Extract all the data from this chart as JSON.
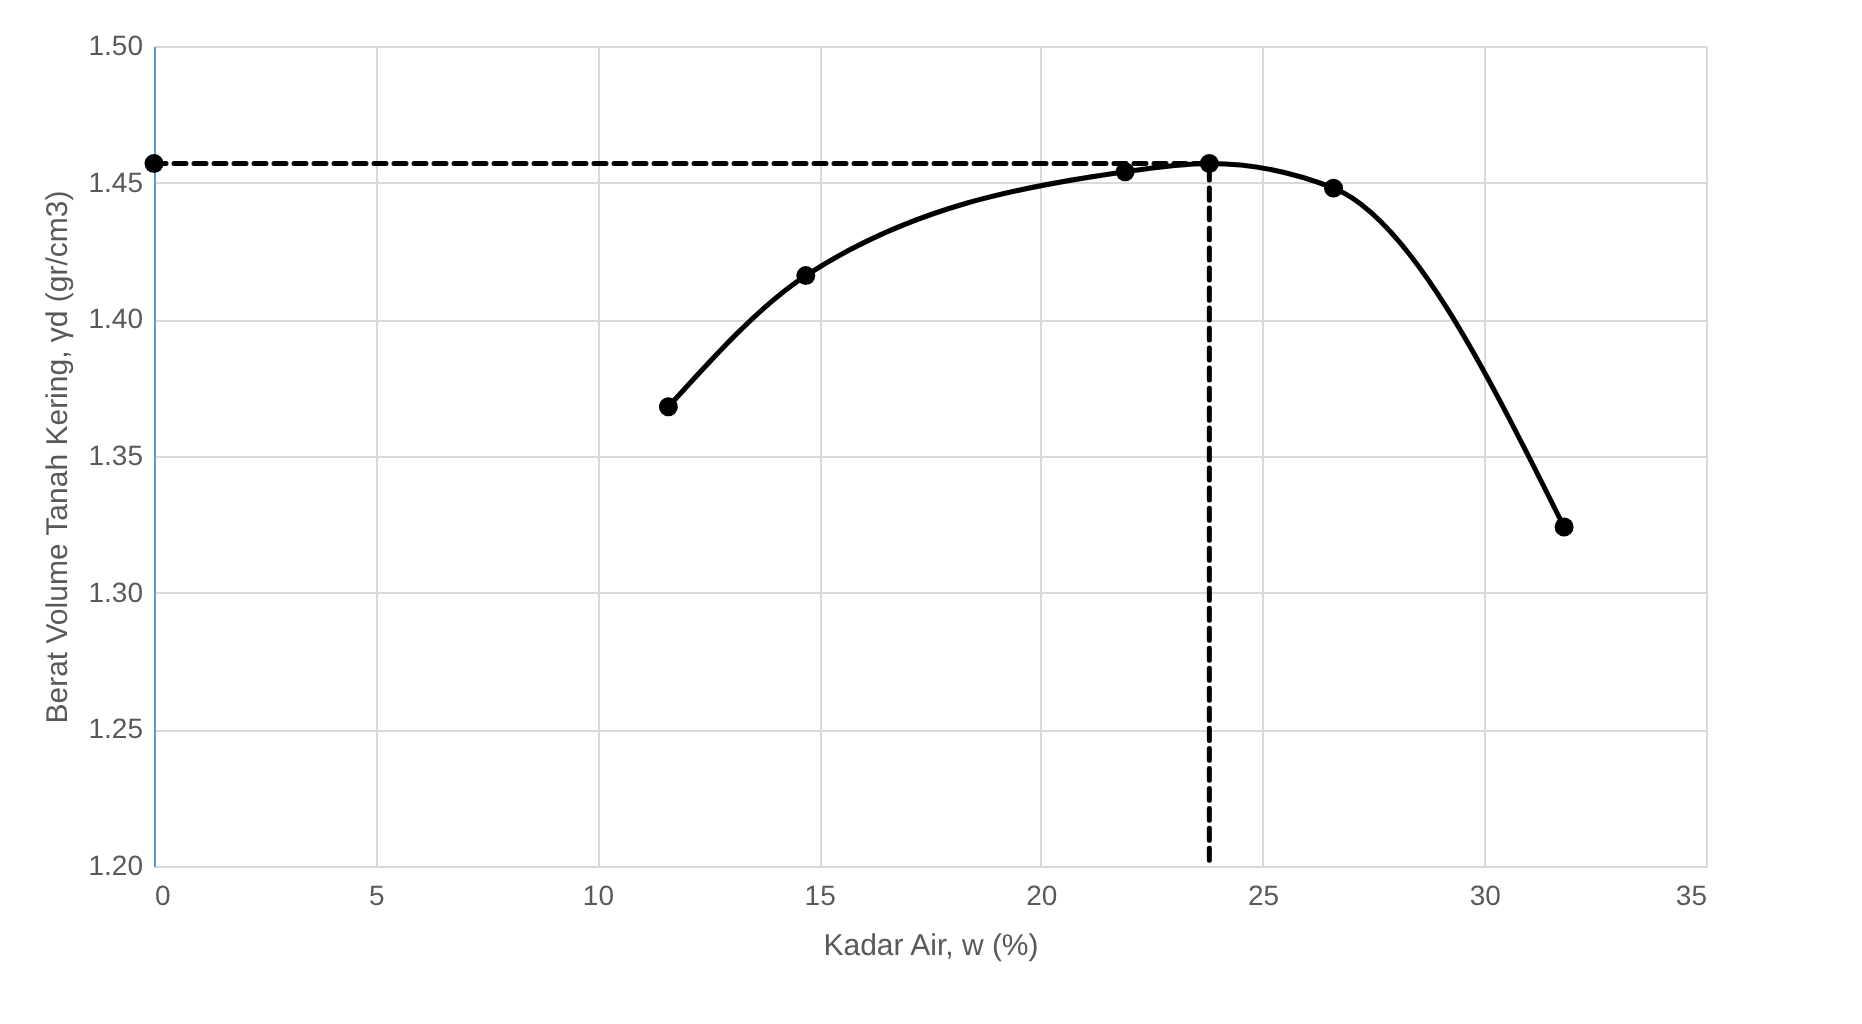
{
  "chart_data": {
    "type": "line",
    "xlabel": "Kadar Air, w (%)",
    "ylabel": "Berat Volume Tanah Kering, γd (gr/cm3)",
    "xlim": [
      0,
      35
    ],
    "xticks": [
      0,
      5,
      10,
      15,
      20,
      25,
      30,
      35
    ],
    "ylim": [
      1.2,
      1.5
    ],
    "yticks": [
      {
        "value": 1.2,
        "label": "1.20"
      },
      {
        "value": 1.25,
        "label": "1.25"
      },
      {
        "value": 1.3,
        "label": "1.30"
      },
      {
        "value": 1.35,
        "label": "1.35"
      },
      {
        "value": 1.4,
        "label": "1.40"
      },
      {
        "value": 1.45,
        "label": "1.45"
      },
      {
        "value": 1.5,
        "label": "1.50"
      }
    ],
    "grid": true,
    "series": [
      {
        "color": "#000000",
        "marker": "circle",
        "line_style": "solid",
        "x": [
          11.6,
          14.7,
          21.9,
          23.8,
          26.6,
          31.8
        ],
        "values": [
          1.368,
          1.416,
          1.454,
          1.457,
          1.448,
          1.324
        ]
      },
      {
        "color": "#000000",
        "marker": "none",
        "line_style": "dashed",
        "x": [
          0,
          23.8,
          23.8
        ],
        "values": [
          1.457,
          1.457,
          1.2
        ]
      },
      {
        "type": "scatter",
        "color": "#000000",
        "marker": "circle",
        "x": [
          0
        ],
        "values": [
          1.457
        ]
      }
    ]
  }
}
